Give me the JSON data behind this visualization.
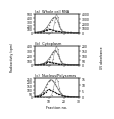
{
  "panel_titles": [
    "(a)  Whole cell RNA",
    "(b)  Cytoplasm",
    "(c)  Nucleus/Polysomes"
  ],
  "xlabel": "Fraction no.",
  "ylabel_left": "Radioactivity (cpm)",
  "ylabel_right": "UV absorbance",
  "fractions": [
    1,
    2,
    3,
    4,
    5,
    6,
    7,
    8,
    9,
    10,
    11,
    12,
    13,
    14,
    15,
    16,
    17,
    18,
    19,
    20,
    21,
    22,
    23,
    24,
    25,
    26,
    27,
    28,
    29,
    30
  ],
  "panels": [
    {
      "infected_open": [
        20,
        22,
        25,
        30,
        38,
        55,
        75,
        110,
        160,
        220,
        290,
        350,
        400,
        420,
        390,
        300,
        180,
        90,
        50,
        32,
        22,
        18,
        15,
        13,
        11,
        10,
        9,
        8,
        7,
        6
      ],
      "uninfected_closed": [
        14,
        16,
        20,
        25,
        32,
        42,
        55,
        70,
        88,
        105,
        98,
        85,
        72,
        62,
        54,
        46,
        38,
        32,
        27,
        23,
        20,
        17,
        15,
        13,
        11,
        10,
        9,
        8,
        7,
        6
      ],
      "uv_triangles": [
        2,
        2,
        2,
        3,
        3,
        4,
        5,
        7,
        10,
        18,
        50,
        200,
        700,
        2200,
        3800,
        3200,
        1800,
        700,
        200,
        60,
        18,
        7,
        3,
        2,
        2,
        2,
        2,
        1,
        1,
        1
      ],
      "ylim_left": [
        0,
        500
      ],
      "ylim_right": [
        0,
        4000
      ],
      "yticks_left": [
        0,
        100,
        200,
        300,
        400,
        500
      ],
      "yticks_right": [
        0,
        1000,
        2000,
        3000,
        4000
      ]
    },
    {
      "infected_open": [
        8,
        10,
        12,
        15,
        20,
        28,
        42,
        62,
        90,
        130,
        175,
        230,
        280,
        310,
        290,
        230,
        155,
        80,
        42,
        25,
        16,
        12,
        10,
        8,
        7,
        6,
        5,
        5,
        4,
        4
      ],
      "uninfected_closed": [
        6,
        8,
        10,
        12,
        16,
        22,
        32,
        44,
        58,
        72,
        68,
        58,
        50,
        43,
        37,
        32,
        26,
        21,
        18,
        15,
        12,
        10,
        8,
        7,
        6,
        5,
        5,
        4,
        4,
        3
      ],
      "uv_triangles": [
        2,
        2,
        2,
        3,
        3,
        4,
        5,
        6,
        8,
        14,
        35,
        120,
        400,
        900,
        1200,
        1000,
        560,
        200,
        60,
        20,
        7,
        3,
        2,
        2,
        2,
        1,
        1,
        1,
        1,
        1
      ],
      "ylim_left": [
        0,
        400
      ],
      "ylim_right": [
        0,
        200
      ],
      "yticks_left": [
        0,
        100,
        200,
        300,
        400
      ],
      "yticks_right": [
        0,
        50,
        100,
        150,
        200
      ]
    },
    {
      "infected_open": [
        15,
        18,
        22,
        30,
        45,
        65,
        95,
        135,
        175,
        210,
        230,
        230,
        210,
        180,
        150,
        115,
        80,
        52,
        32,
        20,
        14,
        10,
        8,
        7,
        6,
        5,
        5,
        4,
        4,
        3
      ],
      "uninfected_closed": [
        10,
        12,
        15,
        20,
        28,
        40,
        55,
        72,
        90,
        105,
        98,
        88,
        76,
        65,
        56,
        47,
        39,
        32,
        26,
        21,
        17,
        14,
        11,
        9,
        8,
        6,
        6,
        5,
        4,
        4
      ],
      "uv_triangles": [
        2,
        2,
        2,
        3,
        4,
        5,
        6,
        8,
        12,
        20,
        55,
        180,
        580,
        1100,
        1400,
        1200,
        680,
        240,
        70,
        22,
        8,
        3,
        2,
        2,
        1,
        1,
        1,
        1,
        1,
        1
      ],
      "ylim_left": [
        0,
        250
      ],
      "ylim_right": [
        0,
        15
      ],
      "yticks_left": [
        0,
        50,
        100,
        150,
        200,
        250
      ],
      "yticks_right": [
        0,
        5,
        10,
        15
      ]
    }
  ],
  "line_color_infected": "#444444",
  "line_color_uninfected": "#222222",
  "line_color_uv": "#888888"
}
